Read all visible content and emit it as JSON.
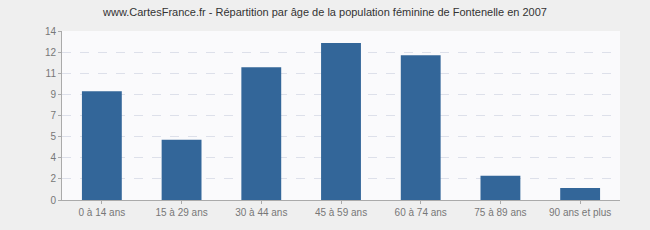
{
  "chart_data": {
    "type": "bar",
    "title": "www.CartesFrance.fr - Répartition par âge de la population féminine de Fontenelle en 2007",
    "categories": [
      "0 à 14 ans",
      "15 à 29 ans",
      "30 à 44 ans",
      "45 à 59 ans",
      "60 à 74 ans",
      "75 à 89 ans",
      "90 ans et plus"
    ],
    "values": [
      9,
      5,
      11,
      13,
      12,
      2,
      1
    ],
    "color": "#336699",
    "ylim": [
      0,
      14
    ],
    "yticks": [
      0,
      {
        "value": 1.75,
        "label": "2"
      },
      {
        "value": 3.5,
        "label": "4"
      },
      {
        "value": 5.25,
        "label": "5"
      },
      7,
      {
        "value": 8.75,
        "label": "9"
      },
      {
        "value": 10.5,
        "label": "11"
      },
      {
        "value": 12.25,
        "label": "12"
      },
      14
    ],
    "grid": true
  }
}
